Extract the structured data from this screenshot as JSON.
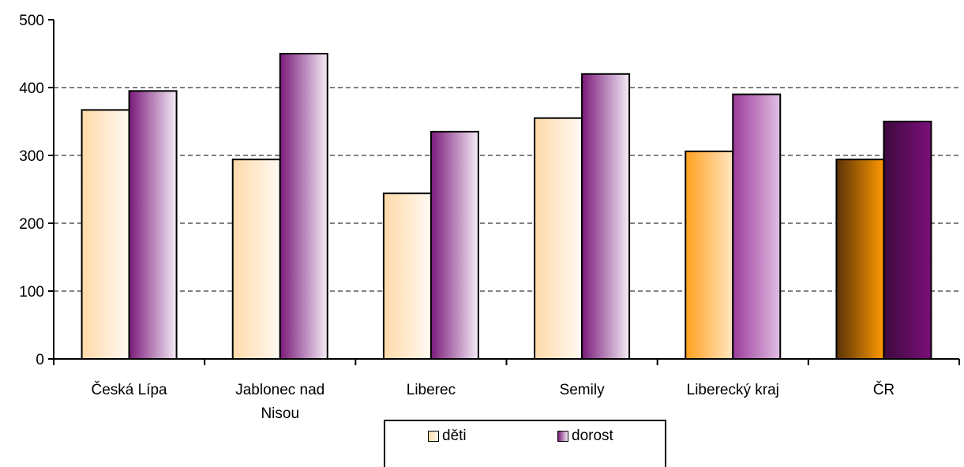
{
  "chart_data": {
    "type": "bar",
    "title": "",
    "xlabel": "",
    "ylabel": "",
    "ylim": [
      0,
      500
    ],
    "yticks": [
      0,
      100,
      200,
      300,
      400,
      500
    ],
    "grid": true,
    "legend_position": "bottom",
    "categories": [
      "Česká Lípa",
      "Jablonec nad Nisou",
      "Liberec",
      "Semily",
      "Liberecký kraj",
      "ČR"
    ],
    "series": [
      {
        "name": "děti",
        "values": [
          367,
          294,
          244,
          355,
          306,
          294
        ]
      },
      {
        "name": "dorost",
        "values": [
          395,
          450,
          335,
          420,
          390,
          350
        ]
      }
    ],
    "colors": {
      "deti_light_start": "#ffd9a8",
      "deti_light_end": "#fffaf3",
      "dorost_light_start": "#7a1a7a",
      "dorost_light_end": "#f4ecf6",
      "kraj_deti_start": "#ffa01e",
      "kraj_deti_end": "#ffe6c2",
      "kraj_dorost_start": "#9a3c9a",
      "kraj_dorost_end": "#e2bfe4",
      "cr_deti_start": "#5a3208",
      "cr_deti_end": "#ff9900",
      "cr_dorost_start": "#3e0a3e",
      "cr_dorost_end": "#7a0f7a"
    }
  }
}
